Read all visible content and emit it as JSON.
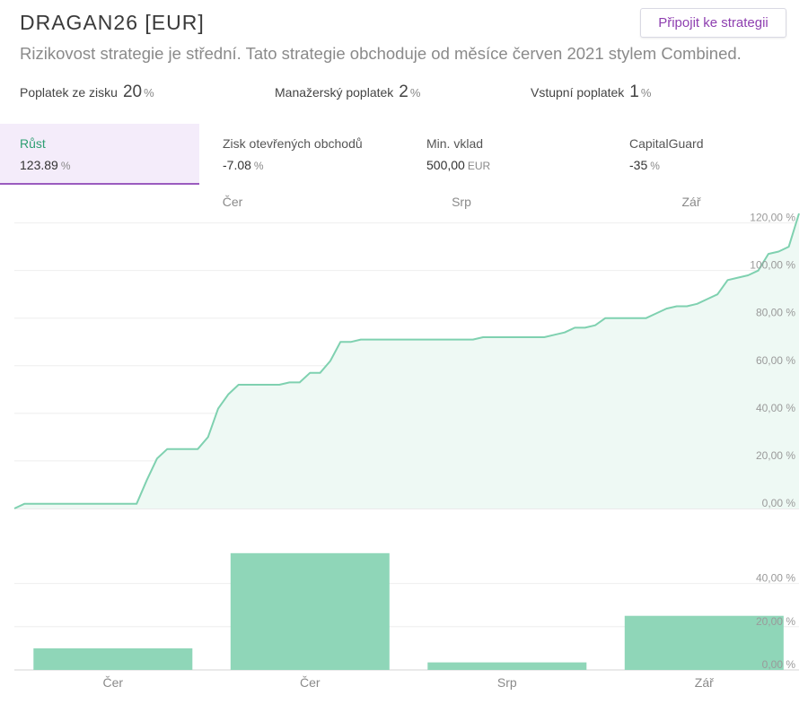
{
  "header": {
    "title": "DRAGAN26 [EUR]",
    "join_button": "Připojit ke strategii",
    "subtitle": "Rizikovost strategie je střední. Tato strategie obchoduje od měsíce červen 2021 stylem Combined."
  },
  "fees": [
    {
      "label": "Poplatek ze zisku",
      "value": "20",
      "unit": "%"
    },
    {
      "label": "Manažerský poplatek",
      "value": "2",
      "unit": "%"
    },
    {
      "label": "Vstupní poplatek",
      "value": "1",
      "unit": "%"
    }
  ],
  "stats": [
    {
      "label": "Růst",
      "value": "123.89",
      "unit": "%",
      "active": true
    },
    {
      "label": "Zisk otevřených obchodů",
      "value": "-7.08",
      "unit": "%"
    },
    {
      "label": "Min. vklad",
      "value": "500,00",
      "unit": "EUR"
    },
    {
      "label": "CapitalGuard",
      "value": "-35",
      "unit": "%"
    }
  ],
  "colors": {
    "accent_green": "#2e9f73",
    "line_green": "#7fd1b0",
    "fill_green": "#eef9f4",
    "bar_green": "#8fd6b8",
    "accent_purple": "#8e3fb0"
  },
  "chart_data": [
    {
      "type": "area",
      "top_month_labels": [
        "Čer",
        "Srp",
        "Zář"
      ],
      "y_ticks": [
        "0,00 %",
        "20,00 %",
        "40,00 %",
        "60,00 %",
        "80,00 %",
        "100,00 %",
        "120,00 %"
      ],
      "ylim": [
        0,
        124
      ],
      "x": [
        0,
        1,
        2,
        3,
        4,
        5,
        6,
        7,
        8,
        9,
        10,
        11,
        12,
        13,
        14,
        15,
        16,
        17,
        18,
        19,
        20,
        21,
        22,
        23,
        24,
        25,
        26,
        27,
        28,
        29,
        30,
        31,
        32,
        33,
        34,
        35,
        36,
        37,
        38,
        39,
        40,
        41,
        42,
        43,
        44,
        45,
        46,
        47,
        48,
        49,
        50,
        51,
        52,
        53,
        54,
        55,
        56,
        57,
        58,
        59,
        60,
        61,
        62,
        63,
        64,
        65,
        66,
        67,
        68,
        69,
        70,
        71,
        72,
        73,
        74,
        75,
        76,
        77
      ],
      "values": [
        0,
        2,
        2,
        2,
        2,
        2,
        2,
        2,
        2,
        2,
        2,
        2,
        2,
        12,
        21,
        25,
        25,
        25,
        25,
        30,
        42,
        48,
        52,
        52,
        52,
        52,
        52,
        53,
        53,
        57,
        57,
        62,
        70,
        70,
        71,
        71,
        71,
        71,
        71,
        71,
        71,
        71,
        71,
        71,
        71,
        71,
        72,
        72,
        72,
        72,
        72,
        72,
        72,
        73,
        74,
        76,
        76,
        77,
        80,
        80,
        80,
        80,
        80,
        82,
        84,
        85,
        85,
        86,
        88,
        90,
        96,
        97,
        98,
        100,
        107,
        108,
        110,
        124
      ]
    },
    {
      "type": "bar",
      "categories": [
        "Čer",
        "Čer",
        "Srp",
        "Zář"
      ],
      "values": [
        10,
        54,
        3.5,
        25
      ],
      "y_ticks": [
        "0,00 %",
        "20,00 %",
        "40,00 %"
      ],
      "ylim": [
        0,
        56
      ]
    }
  ]
}
